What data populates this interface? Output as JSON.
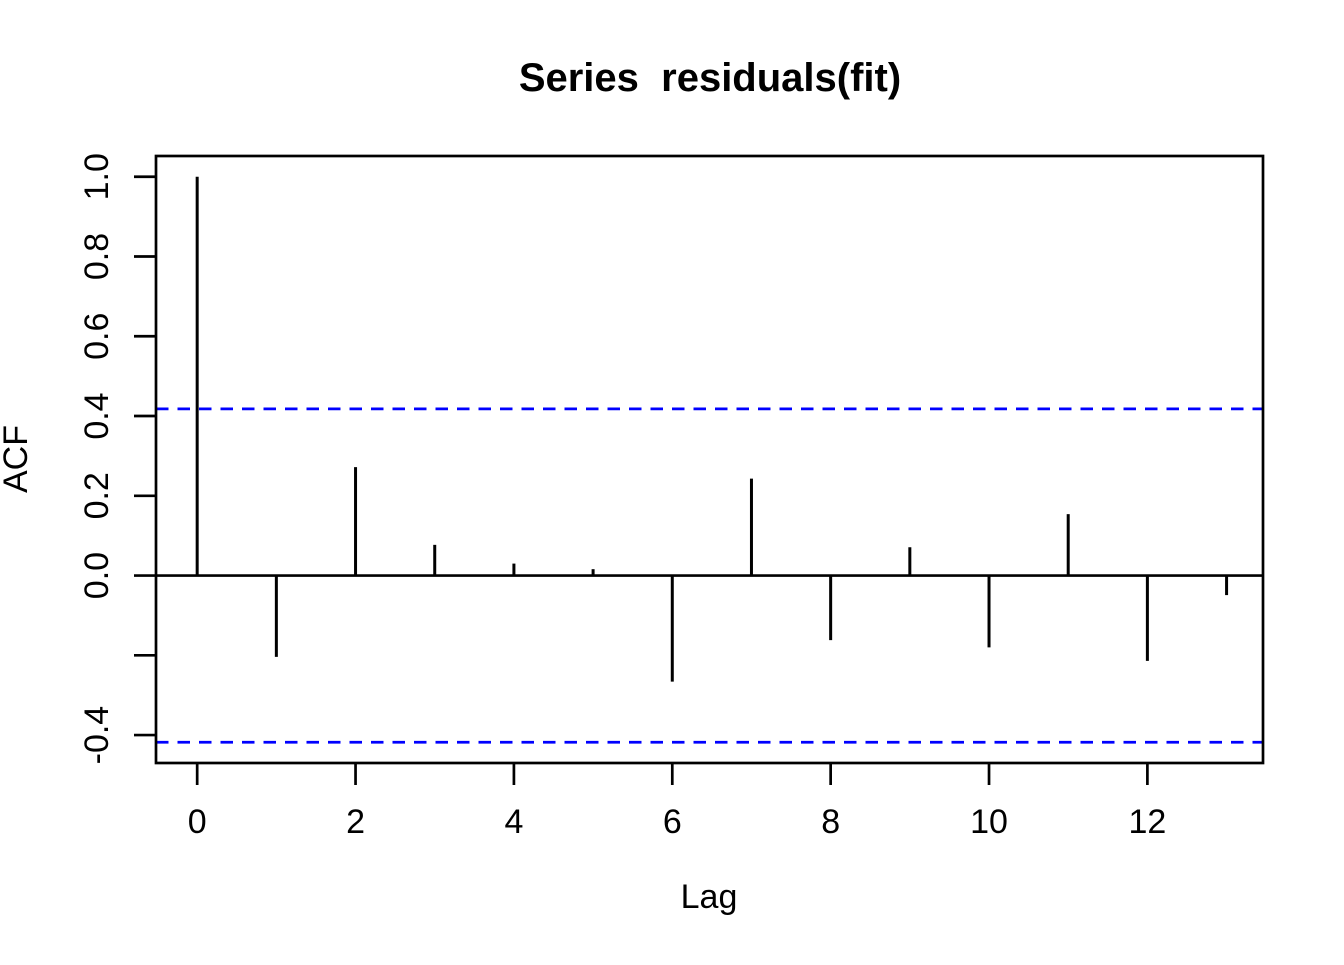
{
  "chart_data": {
    "type": "bar",
    "subtype": "acf-stem-plot",
    "title": "Series  residuals(fit)",
    "xlabel": "Lag",
    "ylabel": "ACF",
    "x": [
      0,
      1,
      2,
      3,
      4,
      5,
      6,
      7,
      8,
      9,
      10,
      11,
      12,
      13
    ],
    "values": [
      1.0,
      -0.204,
      0.272,
      0.077,
      0.03,
      0.016,
      -0.266,
      0.243,
      -0.162,
      0.071,
      -0.18,
      0.154,
      -0.214,
      -0.049
    ],
    "confidence_bounds": {
      "upper": 0.418,
      "lower": -0.418,
      "line_style": "dashed",
      "color": "#0000FF"
    },
    "xlim": [
      -0.52,
      13.46
    ],
    "ylim": [
      -0.47,
      1.052
    ],
    "x_ticks": {
      "values": [
        0,
        2,
        4,
        6,
        8,
        10,
        12
      ],
      "labels": [
        "0",
        "2",
        "4",
        "6",
        "8",
        "10",
        "12"
      ]
    },
    "y_ticks": {
      "values": [
        1.0,
        0.8,
        0.6,
        0.4,
        0.2,
        0.0,
        -0.2,
        -0.4
      ],
      "labels": [
        "1.0",
        "0.8",
        "0.6",
        "0.4",
        "0.2",
        "0.0",
        "",
        "-0.4"
      ]
    },
    "grid": false,
    "legend": null,
    "colors": {
      "stems": "#000000",
      "axes": "#000000",
      "confidence": "#0000FF",
      "background": "#FFFFFF"
    }
  }
}
